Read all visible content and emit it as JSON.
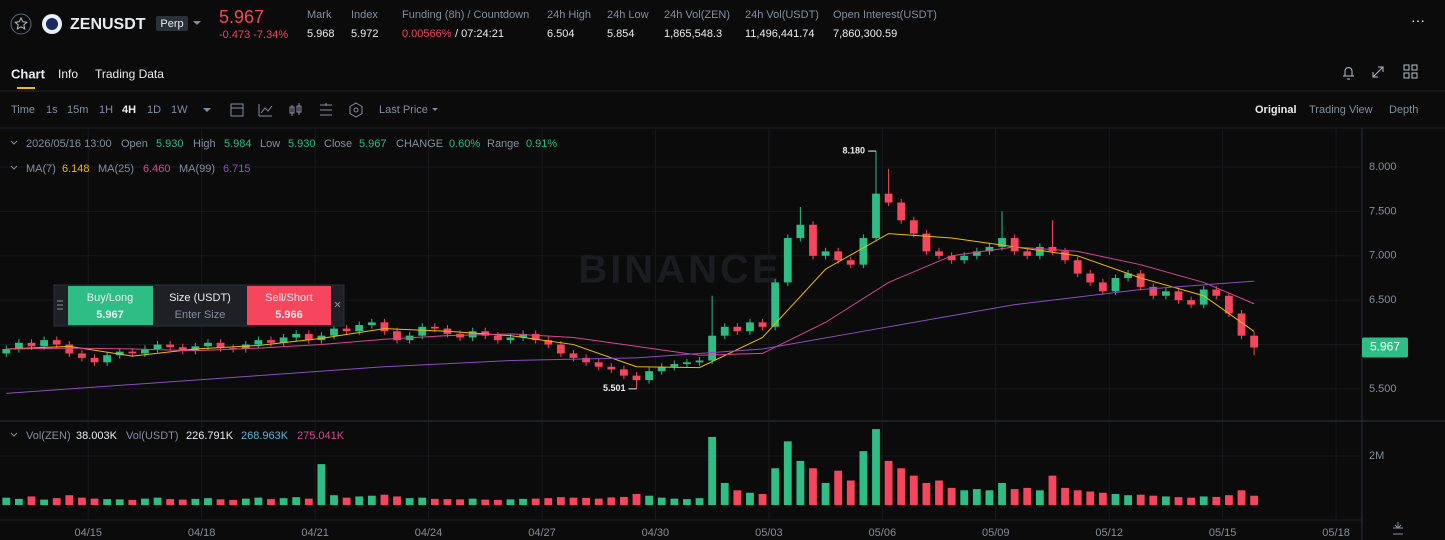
{
  "header": {
    "symbol": "ZENUSDT",
    "badge": "Perp",
    "price": "5.967",
    "change": "-0.473 -7.34%",
    "stats": [
      {
        "label": "Mark",
        "value": "5.968"
      },
      {
        "label": "Index",
        "value": "5.972"
      },
      {
        "label": "Funding (8h) / Countdown",
        "value": "0.00566%",
        "value2": "/ 07:24:21"
      },
      {
        "label": "24h High",
        "value": "6.504"
      },
      {
        "label": "24h Low",
        "value": "5.854"
      },
      {
        "label": "24h Vol(ZEN)",
        "value": "1,865,548.3"
      },
      {
        "label": "24h Vol(USDT)",
        "value": "11,496,441.74"
      },
      {
        "label": "Open Interest(USDT)",
        "value": "7,860,300.59"
      }
    ]
  },
  "tabs": [
    "Chart",
    "Info",
    "Trading Data"
  ],
  "toolbar": {
    "intervals": [
      "Time",
      "1s",
      "15m",
      "1H",
      "4H",
      "1D",
      "1W"
    ],
    "price_type": "Last Price",
    "views": [
      "Original",
      "Trading View",
      "Depth"
    ]
  },
  "legend": {
    "datetime": "2026/05/16 13:00",
    "fields": [
      {
        "label": "Open",
        "value": "5.930"
      },
      {
        "label": "High",
        "value": "5.984"
      },
      {
        "label": "Low",
        "value": "5.930"
      },
      {
        "label": "Close",
        "value": "5.967"
      },
      {
        "label": "CHANGE",
        "value": "0.60%"
      },
      {
        "label": "Range",
        "value": "0.91%"
      }
    ]
  },
  "ma_legend": [
    {
      "label": "MA(7)",
      "value": "6.148"
    },
    {
      "label": "MA(25)",
      "value": "6.460"
    },
    {
      "label": "MA(99)",
      "value": "6.715"
    }
  ],
  "vol_legend": {
    "label": "Vol(ZEN)",
    "value": "38.003K",
    "label2": "Vol(USDT)",
    "values": [
      "226.791K",
      "268.963K",
      "275.041K"
    ]
  },
  "order_panel": {
    "buy": "Buy/Long",
    "buy_price": "5.967",
    "size_label": "Size (USDT)",
    "size_placeholder": "Enter Size",
    "sell": "Sell/Short",
    "sell_price": "5.966"
  },
  "chart_data": {
    "type": "candlestick",
    "watermark": "BINANCE",
    "up_color": "#2ebd85",
    "down_color": "#f6465d",
    "xlim": [
      -0.5,
      107.4
    ],
    "xticks": [
      {
        "value": 6.5,
        "label": "04/15"
      },
      {
        "value": 15.5,
        "label": "04/18"
      },
      {
        "value": 24.5,
        "label": "04/21"
      },
      {
        "value": 33.5,
        "label": "04/24"
      },
      {
        "value": 42.5,
        "label": "04/27"
      },
      {
        "value": 51.5,
        "label": "04/30"
      },
      {
        "value": 60.5,
        "label": "05/03"
      },
      {
        "value": 69.5,
        "label": "05/06"
      },
      {
        "value": 78.5,
        "label": "05/09"
      },
      {
        "value": 87.5,
        "label": "05/12"
      },
      {
        "value": 96.5,
        "label": "05/15"
      },
      {
        "value": 105.5,
        "label": "05/18"
      }
    ],
    "ylim": [
      5.15,
      8.44
    ],
    "yticks": [
      {
        "value": 5.5,
        "label": "5.500"
      },
      {
        "value": 6,
        "label": "6.000"
      },
      {
        "value": 6.5,
        "label": "6.500"
      },
      {
        "value": 7,
        "label": "7.000"
      },
      {
        "value": 7.5,
        "label": "7.500"
      },
      {
        "value": 8,
        "label": "8.000"
      }
    ],
    "grid": true,
    "candles": {
      "open": [
        5.9,
        5.95,
        6.02,
        5.98,
        6.05,
        6.0,
        5.9,
        5.85,
        5.8,
        5.88,
        5.92,
        5.9,
        5.95,
        6.0,
        5.97,
        5.93,
        5.98,
        6.02,
        5.96,
        5.95,
        6.0,
        6.05,
        6.02,
        6.08,
        6.12,
        6.05,
        6.1,
        6.18,
        6.15,
        6.22,
        6.25,
        6.15,
        6.05,
        6.1,
        6.2,
        6.18,
        6.12,
        6.08,
        6.15,
        6.1,
        6.05,
        6.08,
        6.12,
        6.05,
        6.0,
        5.9,
        5.85,
        5.8,
        5.75,
        5.72,
        5.65,
        5.6,
        5.7,
        5.75,
        5.78,
        5.8,
        5.82,
        6.1,
        6.2,
        6.15,
        6.25,
        6.2,
        6.7,
        7.2,
        7.35,
        7.0,
        7.05,
        6.95,
        6.9,
        7.2,
        7.7,
        7.6,
        7.4,
        7.25,
        7.05,
        7.0,
        6.95,
        7.0,
        7.05,
        7.1,
        7.2,
        7.05,
        7.0,
        7.1,
        7.05,
        6.95,
        6.8,
        6.7,
        6.6,
        6.75,
        6.8,
        6.65,
        6.55,
        6.6,
        6.5,
        6.45,
        6.62,
        6.55,
        6.35,
        6.1
      ],
      "high": [
        5.99,
        6.06,
        6.06,
        6.09,
        6.09,
        6.04,
        5.94,
        5.89,
        5.92,
        5.96,
        5.96,
        5.99,
        6.04,
        6.04,
        6.01,
        6.02,
        6.06,
        6.06,
        6.0,
        6.04,
        6.09,
        6.09,
        6.12,
        6.16,
        6.16,
        6.14,
        6.22,
        6.22,
        6.26,
        6.29,
        6.29,
        6.19,
        6.14,
        6.24,
        6.24,
        6.22,
        6.16,
        6.19,
        6.19,
        6.14,
        6.12,
        6.16,
        6.16,
        6.09,
        6.04,
        5.94,
        5.89,
        5.84,
        5.79,
        5.76,
        5.69,
        5.74,
        5.79,
        5.82,
        5.84,
        5.86,
        6.55,
        6.24,
        6.24,
        6.29,
        6.29,
        6.74,
        7.24,
        7.55,
        7.39,
        7.09,
        7.09,
        6.99,
        7.24,
        8.18,
        7.98,
        7.64,
        7.44,
        7.29,
        7.09,
        7.04,
        7.04,
        7.09,
        7.14,
        7.5,
        7.24,
        7.09,
        7.14,
        7.4,
        7.09,
        6.99,
        6.84,
        6.74,
        6.79,
        6.84,
        6.84,
        6.69,
        6.64,
        6.64,
        6.54,
        6.66,
        6.66,
        6.59,
        6.39,
        6.14
      ],
      "low": [
        5.86,
        5.91,
        5.94,
        5.94,
        5.96,
        5.86,
        5.81,
        5.76,
        5.76,
        5.84,
        5.86,
        5.86,
        5.91,
        5.93,
        5.89,
        5.89,
        5.94,
        5.92,
        5.91,
        5.91,
        5.96,
        5.98,
        5.98,
        6.04,
        6.01,
        6.01,
        6.06,
        6.11,
        6.11,
        6.18,
        6.11,
        6.01,
        6.01,
        6.06,
        6.14,
        6.08,
        6.04,
        6.04,
        6.06,
        6.01,
        6.01,
        6.04,
        6.01,
        5.96,
        5.86,
        5.81,
        5.76,
        5.71,
        5.68,
        5.61,
        5.501,
        5.56,
        5.66,
        5.71,
        5.74,
        5.76,
        5.78,
        6.06,
        6.11,
        6.11,
        6.16,
        6.16,
        6.66,
        7.16,
        6.96,
        6.96,
        6.91,
        6.86,
        6.86,
        7.16,
        7.56,
        7.36,
        7.21,
        7.01,
        6.96,
        6.91,
        6.91,
        6.96,
        7.01,
        7.06,
        7.01,
        6.96,
        6.96,
        7.01,
        6.91,
        6.76,
        6.66,
        6.56,
        6.56,
        6.71,
        6.61,
        6.51,
        6.51,
        6.46,
        6.41,
        6.41,
        6.51,
        6.31,
        6.06,
        5.88
      ],
      "close": [
        5.95,
        6.02,
        5.98,
        6.05,
        6.0,
        5.9,
        5.85,
        5.8,
        5.88,
        5.92,
        5.9,
        5.95,
        6.0,
        5.97,
        5.93,
        5.98,
        6.02,
        5.96,
        5.95,
        6.0,
        6.05,
        6.02,
        6.08,
        6.12,
        6.05,
        6.1,
        6.18,
        6.15,
        6.22,
        6.25,
        6.15,
        6.05,
        6.1,
        6.2,
        6.18,
        6.12,
        6.08,
        6.15,
        6.1,
        6.05,
        6.08,
        6.12,
        6.05,
        6.0,
        5.9,
        5.85,
        5.8,
        5.75,
        5.72,
        5.65,
        5.6,
        5.7,
        5.75,
        5.78,
        5.8,
        5.82,
        6.1,
        6.2,
        6.15,
        6.25,
        6.2,
        6.7,
        7.2,
        7.35,
        7.0,
        7.05,
        6.95,
        6.9,
        7.2,
        7.7,
        7.6,
        7.4,
        7.25,
        7.05,
        7.0,
        6.95,
        7.0,
        7.05,
        7.1,
        7.2,
        7.05,
        7.0,
        7.1,
        7.05,
        6.95,
        6.8,
        6.7,
        6.6,
        6.75,
        6.8,
        6.65,
        6.55,
        6.6,
        6.5,
        6.45,
        6.62,
        6.55,
        6.35,
        6.1,
        5.967
      ]
    },
    "ma": [
      {
        "name": "MA(7)",
        "color": "#f0b90b",
        "x": [
          0,
          5,
          10,
          15,
          20,
          25,
          30,
          35,
          40,
          45,
          50,
          55,
          60,
          65,
          70,
          75,
          80,
          85,
          90,
          95,
          99
        ],
        "values": [
          5.95,
          5.98,
          5.87,
          5.95,
          5.99,
          6.07,
          6.18,
          6.15,
          6.1,
          6.0,
          5.75,
          5.74,
          6.08,
          6.85,
          7.25,
          7.2,
          7.1,
          7.0,
          6.75,
          6.55,
          6.148
        ]
      },
      {
        "name": "MA(25)",
        "color": "#d6478d",
        "x": [
          0,
          5,
          10,
          15,
          20,
          25,
          30,
          35,
          40,
          45,
          50,
          55,
          60,
          65,
          70,
          75,
          80,
          85,
          90,
          95,
          99
        ],
        "values": [
          5.95,
          5.96,
          5.95,
          5.93,
          5.96,
          6.0,
          6.06,
          6.1,
          6.12,
          6.08,
          5.98,
          5.88,
          5.9,
          6.25,
          6.7,
          7.0,
          7.1,
          7.05,
          6.9,
          6.7,
          6.46
        ]
      },
      {
        "name": "MA(99)",
        "color": "#8a4fc0",
        "x": [
          0,
          10,
          20,
          30,
          40,
          50,
          60,
          70,
          80,
          90,
          99
        ],
        "values": [
          5.45,
          5.55,
          5.65,
          5.75,
          5.82,
          5.85,
          5.95,
          6.2,
          6.45,
          6.62,
          6.715
        ]
      }
    ],
    "annotations": [
      {
        "x": 69,
        "value": 8.18,
        "label": "8.180"
      },
      {
        "x": 50,
        "value": 5.501,
        "label": "5.501"
      }
    ],
    "last_price": 5.967,
    "volume": {
      "ylim": [
        0,
        3390000
      ],
      "yticks": [
        {
          "value": 2000000,
          "label": "2M"
        }
      ],
      "values": [
        300000,
        250000,
        350000,
        220000,
        280000,
        400000,
        300000,
        260000,
        240000,
        230000,
        210000,
        260000,
        300000,
        240000,
        220000,
        250000,
        280000,
        230000,
        210000,
        260000,
        300000,
        240000,
        280000,
        320000,
        260000,
        1670000,
        400000,
        300000,
        350000,
        380000,
        420000,
        350000,
        280000,
        300000,
        250000,
        240000,
        230000,
        260000,
        220000,
        210000,
        230000,
        250000,
        260000,
        280000,
        320000,
        300000,
        290000,
        260000,
        310000,
        330000,
        450000,
        380000,
        300000,
        260000,
        240000,
        280000,
        2780000,
        900000,
        600000,
        500000,
        450000,
        1500000,
        2600000,
        1800000,
        1500000,
        900000,
        1400000,
        1000000,
        2200000,
        3100000,
        1800000,
        1500000,
        1200000,
        900000,
        1000000,
        700000,
        600000,
        650000,
        600000,
        900000,
        650000,
        700000,
        600000,
        1200000,
        700000,
        600000,
        550000,
        500000,
        450000,
        400000,
        420000,
        380000,
        350000,
        320000,
        300000,
        350000,
        330000,
        400000,
        600000,
        380000
      ]
    }
  }
}
